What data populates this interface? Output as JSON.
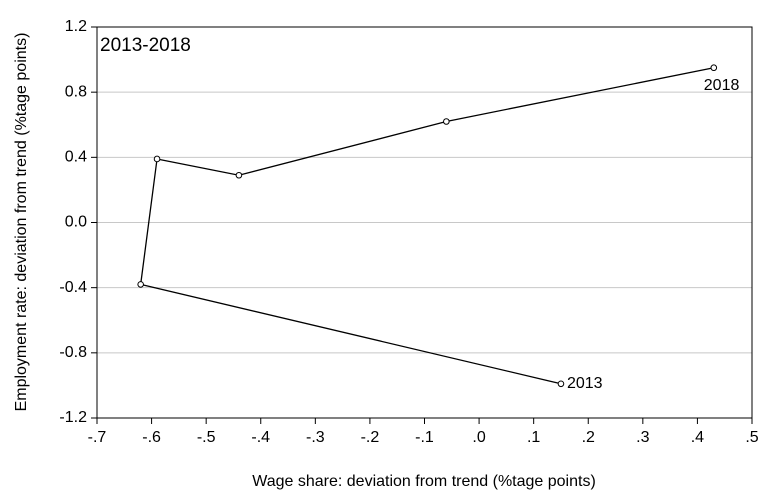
{
  "chart_data": {
    "type": "connected-scatter",
    "annotation": "2013-2018",
    "x_label": "Wage share: deviation from trend (%tage points)",
    "y_label": "Employment rate: deviation from trend (%tage points)",
    "x": [
      0.15,
      -0.62,
      -0.59,
      -0.44,
      -0.06,
      0.43
    ],
    "y": [
      -0.99,
      -0.38,
      0.39,
      0.29,
      0.62,
      0.95
    ],
    "point_labels": [
      "2013",
      null,
      null,
      null,
      null,
      "2018"
    ],
    "color": "#000000",
    "xlim": [
      -0.7,
      0.5
    ],
    "xticks": [
      {
        "value": -0.7,
        "label": "-.7"
      },
      {
        "value": -0.6,
        "label": "-.6"
      },
      {
        "value": -0.5,
        "label": "-.5"
      },
      {
        "value": -0.4,
        "label": "-.4"
      },
      {
        "value": -0.3,
        "label": "-.3"
      },
      {
        "value": -0.2,
        "label": "-.2"
      },
      {
        "value": -0.1,
        "label": "-.1"
      },
      {
        "value": 0,
        "label": ".0"
      },
      {
        "value": 0.1,
        "label": ".1"
      },
      {
        "value": 0.2,
        "label": ".2"
      },
      {
        "value": 0.3,
        "label": ".3"
      },
      {
        "value": 0.4,
        "label": ".4"
      },
      {
        "value": 0.5,
        "label": ".5"
      }
    ],
    "ylim": [
      -1.2,
      1.2
    ],
    "yticks": [
      -1.2,
      -0.8,
      -0.4,
      {
        "value": 0,
        "label": "0.0"
      },
      0.4,
      0.8,
      1.2
    ],
    "grid": true
  }
}
